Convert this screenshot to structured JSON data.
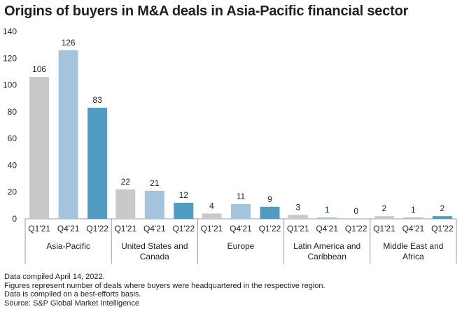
{
  "title": "Origins of buyers in M&A deals in Asia-Pacific financial sector",
  "chart_data": {
    "type": "bar",
    "title": "Origins of buyers in M&A deals in Asia-Pacific financial sector",
    "ylim": [
      0,
      140
    ],
    "yticks": [
      0,
      20,
      40,
      60,
      80,
      100,
      120,
      140
    ],
    "grid": false,
    "groups": [
      {
        "name": "Asia-Pacific",
        "label_lines": [
          "Asia-Pacific"
        ],
        "categories": [
          "Q1'21",
          "Q4'21",
          "Q1'22"
        ],
        "values": [
          106,
          126,
          83
        ]
      },
      {
        "name": "United States and Canada",
        "label_lines": [
          "United States and",
          "Canada"
        ],
        "categories": [
          "Q1'21",
          "Q4'21",
          "Q1'22"
        ],
        "values": [
          22,
          21,
          12
        ]
      },
      {
        "name": "Europe",
        "label_lines": [
          "Europe"
        ],
        "categories": [
          "Q1'21",
          "Q4'21",
          "Q1'22"
        ],
        "values": [
          4,
          11,
          9
        ]
      },
      {
        "name": "Latin America and Caribbean",
        "label_lines": [
          "Latin America and",
          "Caribbean"
        ],
        "categories": [
          "Q1'21",
          "Q4'21",
          "Q1'22"
        ],
        "values": [
          3,
          1,
          0
        ]
      },
      {
        "name": "Middle East and Africa",
        "label_lines": [
          "Middle East and",
          "Africa"
        ],
        "categories": [
          "Q1'21",
          "Q4'21",
          "Q1'22"
        ],
        "values": [
          2,
          1,
          2
        ]
      }
    ],
    "colors": {
      "Q1'21": "#c9c9c9",
      "Q4'21": "#a3c4dc",
      "Q1'22": "#4f9bc2"
    }
  },
  "notes": [
    "Data compiled April 14, 2022.",
    "Figures represent number of deals where buyers were headquartered in the respective region.",
    "Data is compiled on a best-efforts basis.",
    "Source: S&P Global Market Intelligence"
  ]
}
